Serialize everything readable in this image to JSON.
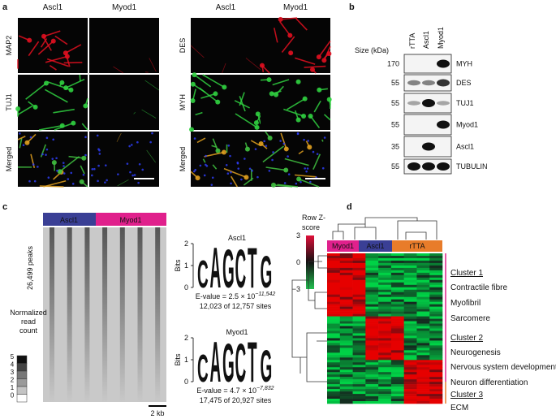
{
  "panel_a": {
    "label": "a",
    "left": {
      "columns": [
        "Ascl1",
        "Myod1"
      ],
      "rows": [
        "MAP2",
        "TUJ1",
        "Merged"
      ]
    },
    "right": {
      "columns": [
        "Ascl1",
        "Myod1"
      ],
      "rows": [
        "DES",
        "MYH",
        "Merged"
      ]
    }
  },
  "panel_b": {
    "label": "b",
    "lanes": [
      "rTTA",
      "Ascl1",
      "Myod1"
    ],
    "size_header": "Size (kDa)",
    "blots": [
      {
        "size": "170",
        "protein": "MYH"
      },
      {
        "size": "55",
        "protein": "DES"
      },
      {
        "size": "55",
        "protein": "TUJ1"
      },
      {
        "size": "55",
        "protein": "Myod1"
      },
      {
        "size": "35",
        "protein": "Ascl1"
      },
      {
        "size": "55",
        "protein": "TUBULIN"
      }
    ]
  },
  "panel_c": {
    "label": "c",
    "groups": [
      "Ascl1",
      "Myod1"
    ],
    "peaks": "26,499 peaks",
    "legend_title": [
      "Normalized",
      "read",
      "count"
    ],
    "legend_ticks": [
      "5",
      "4",
      "3",
      "2",
      "1",
      "0"
    ],
    "scale": "2 kb",
    "motifs": [
      {
        "name": "Ascl1",
        "axis_title": "Bits",
        "ticks": [
          "2",
          "1",
          "0"
        ],
        "sequence": [
          "C",
          "A",
          "G",
          "C",
          "T",
          "G"
        ],
        "evalue": "E-value = 2.5 × 10",
        "exponent": "−11,542",
        "sites": "12,023 of 12,757 sites"
      },
      {
        "name": "Myod1",
        "axis_title": "Bits",
        "ticks": [
          "2",
          "1",
          "0"
        ],
        "sequence": [
          "C",
          "A",
          "G",
          "C",
          "T",
          "G"
        ],
        "evalue": "E-value = 4.7 × 10",
        "exponent": "−7,832",
        "sites": "17,475 of 20,927 sites"
      }
    ]
  },
  "panel_d": {
    "label": "d",
    "legend_title": [
      "Row Z-",
      "score"
    ],
    "legend_ticks": [
      "3",
      "0",
      "−3"
    ],
    "groups": [
      "Myod1",
      "Ascl1",
      "rTTA"
    ],
    "clusters": [
      {
        "name": "Cluster 1",
        "terms": [
          "Contractile fibre",
          "Myofibril",
          "Sarcomere"
        ]
      },
      {
        "name": "Cluster 2",
        "terms": [
          "Neurogenesis",
          "Nervous system development",
          "Neuron differentiation"
        ]
      },
      {
        "name": "Cluster 3",
        "terms": [
          "ECM"
        ]
      }
    ]
  }
}
